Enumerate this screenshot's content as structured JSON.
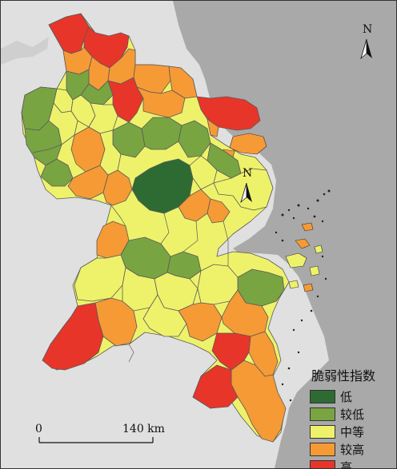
{
  "colors": {
    "sea": "#a9a9a9",
    "land_outside": "#e0e0e0",
    "water": "#cfcfcf",
    "boundary": "#5a5a5a",
    "class_1": "#2e6b33",
    "class_2": "#79a442",
    "class_3": "#eef26a",
    "class_4": "#f69a35",
    "class_5": "#e7352a"
  },
  "legend": {
    "title": "脆弱性指数",
    "items": [
      {
        "label": "低",
        "color": "#2e6b33"
      },
      {
        "label": "较低",
        "color": "#79a442"
      },
      {
        "label": "中等",
        "color": "#eef26a"
      },
      {
        "label": "较高",
        "color": "#f69a35"
      },
      {
        "label": "高",
        "color": "#e7352a"
      }
    ]
  },
  "scale_bar": {
    "start_label": "0",
    "end_label": "140 km"
  },
  "north_arrows": [
    {
      "label": "N",
      "icon": "north-arrow-icon"
    },
    {
      "label": "N",
      "icon": "north-arrow-icon"
    }
  ]
}
